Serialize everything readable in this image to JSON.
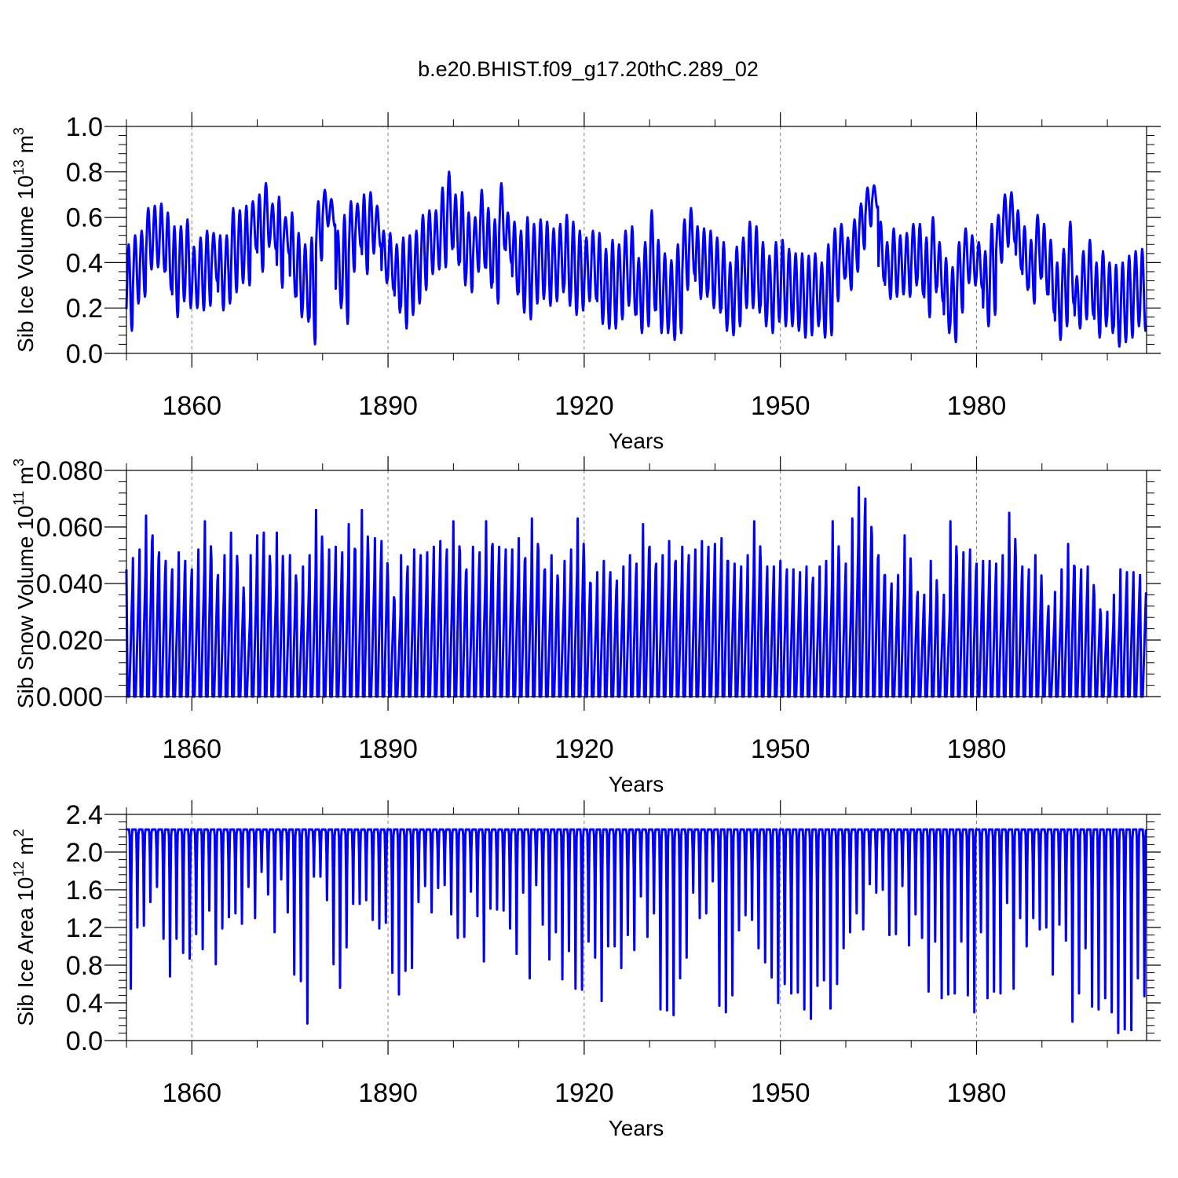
{
  "figure": {
    "title": "b.e20.BHIST.f09_g17.20thC.289_02"
  },
  "colors": {
    "series": "#0000ff",
    "axes": "#000000",
    "gridline": "#808080",
    "background": "#ffffff"
  },
  "chart_data": [
    {
      "type": "line",
      "title": "",
      "ylabel": {
        "main": "Sib Ice Volume 10",
        "sup": "13",
        "unit": " m",
        "unit_sup": "3"
      },
      "xlabel": "Years",
      "xlim": [
        1850,
        2006
      ],
      "ylim": [
        0.0,
        1.0
      ],
      "xticks": [
        1860,
        1890,
        1920,
        1950,
        1980
      ],
      "yticks": [
        "0.0",
        "0.2",
        "0.4",
        "0.6",
        "0.8",
        "1.0"
      ],
      "grid": "vertical dashed at major x ticks",
      "series": [
        {
          "kind": "seasonal",
          "start_year": 1850,
          "end_year": 2006,
          "annual_max": [
            0.48,
            0.52,
            0.54,
            0.64,
            0.65,
            0.66,
            0.62,
            0.56,
            0.56,
            0.59,
            0.47,
            0.51,
            0.54,
            0.53,
            0.52,
            0.52,
            0.64,
            0.63,
            0.65,
            0.67,
            0.7,
            0.75,
            0.66,
            0.69,
            0.6,
            0.62,
            0.53,
            0.48,
            0.51,
            0.67,
            0.72,
            0.68,
            0.54,
            0.61,
            0.67,
            0.66,
            0.7,
            0.71,
            0.65,
            0.54,
            0.53,
            0.48,
            0.51,
            0.52,
            0.54,
            0.61,
            0.63,
            0.63,
            0.73,
            0.8,
            0.7,
            0.71,
            0.62,
            0.6,
            0.72,
            0.64,
            0.59,
            0.75,
            0.62,
            0.58,
            0.54,
            0.6,
            0.57,
            0.59,
            0.58,
            0.55,
            0.57,
            0.61,
            0.58,
            0.54,
            0.51,
            0.54,
            0.53,
            0.46,
            0.5,
            0.48,
            0.54,
            0.56,
            0.42,
            0.49,
            0.63,
            0.5,
            0.44,
            0.41,
            0.48,
            0.59,
            0.64,
            0.56,
            0.55,
            0.54,
            0.51,
            0.49,
            0.4,
            0.47,
            0.51,
            0.58,
            0.56,
            0.49,
            0.43,
            0.49,
            0.5,
            0.46,
            0.44,
            0.44,
            0.43,
            0.44,
            0.4,
            0.48,
            0.55,
            0.57,
            0.51,
            0.59,
            0.66,
            0.73,
            0.74,
            0.58,
            0.49,
            0.55,
            0.52,
            0.53,
            0.57,
            0.57,
            0.51,
            0.6,
            0.49,
            0.42,
            0.38,
            0.49,
            0.55,
            0.52,
            0.49,
            0.45,
            0.57,
            0.61,
            0.7,
            0.71,
            0.63,
            0.56,
            0.5,
            0.61,
            0.57,
            0.5,
            0.4,
            0.46,
            0.58,
            0.34,
            0.45,
            0.5,
            0.4,
            0.45,
            0.4,
            0.39,
            0.4,
            0.43,
            0.45,
            0.46
          ],
          "annual_min": [
            0.1,
            0.22,
            0.25,
            0.37,
            0.38,
            0.36,
            0.28,
            0.16,
            0.23,
            0.2,
            0.2,
            0.19,
            0.21,
            0.32,
            0.19,
            0.22,
            0.27,
            0.31,
            0.3,
            0.46,
            0.36,
            0.47,
            0.46,
            0.29,
            0.44,
            0.25,
            0.16,
            0.14,
            0.04,
            0.41,
            0.56,
            0.56,
            0.2,
            0.13,
            0.36,
            0.47,
            0.35,
            0.44,
            0.47,
            0.31,
            0.28,
            0.18,
            0.11,
            0.17,
            0.22,
            0.28,
            0.35,
            0.37,
            0.38,
            0.46,
            0.39,
            0.3,
            0.27,
            0.36,
            0.38,
            0.29,
            0.22,
            0.46,
            0.4,
            0.26,
            0.18,
            0.15,
            0.22,
            0.24,
            0.21,
            0.23,
            0.27,
            0.21,
            0.17,
            0.19,
            0.23,
            0.24,
            0.13,
            0.11,
            0.11,
            0.15,
            0.21,
            0.17,
            0.09,
            0.12,
            0.19,
            0.09,
            0.09,
            0.06,
            0.09,
            0.28,
            0.35,
            0.24,
            0.25,
            0.2,
            0.18,
            0.1,
            0.08,
            0.12,
            0.2,
            0.2,
            0.18,
            0.12,
            0.09,
            0.14,
            0.12,
            0.12,
            0.1,
            0.07,
            0.08,
            0.12,
            0.07,
            0.08,
            0.23,
            0.33,
            0.28,
            0.36,
            0.46,
            0.56,
            0.64,
            0.32,
            0.24,
            0.25,
            0.26,
            0.25,
            0.3,
            0.26,
            0.16,
            0.27,
            0.23,
            0.09,
            0.05,
            0.18,
            0.31,
            0.3,
            0.29,
            0.12,
            0.17,
            0.4,
            0.47,
            0.49,
            0.37,
            0.28,
            0.22,
            0.33,
            0.26,
            0.18,
            0.06,
            0.12,
            0.22,
            0.11,
            0.15,
            0.17,
            0.07,
            0.12,
            0.09,
            0.03,
            0.05,
            0.07,
            0.12,
            0.1
          ]
        }
      ]
    },
    {
      "type": "line",
      "title": "",
      "ylabel": {
        "main": "Sib Snow Volume 10",
        "sup": "11",
        "unit": " m",
        "unit_sup": "3"
      },
      "xlabel": "Years",
      "xlim": [
        1850,
        2006
      ],
      "ylim": [
        0.0,
        0.08
      ],
      "xticks": [
        1860,
        1890,
        1920,
        1950,
        1980
      ],
      "yticks": [
        "0.000",
        "0.020",
        "0.040",
        "0.060",
        "0.080"
      ],
      "grid": "vertical dashed at major x ticks",
      "series": [
        {
          "kind": "seasonal",
          "start_year": 1850,
          "end_year": 2006,
          "annual_max": [
            0.045,
            0.049,
            0.052,
            0.064,
            0.057,
            0.051,
            0.048,
            0.045,
            0.051,
            0.048,
            0.045,
            0.052,
            0.062,
            0.048,
            0.043,
            0.05,
            0.058,
            0.045,
            0.033,
            0.05,
            0.057,
            0.058,
            0.046,
            0.058,
            0.042,
            0.05,
            0.04,
            0.046,
            0.05,
            0.066,
            0.048,
            0.052,
            0.053,
            0.051,
            0.061,
            0.052,
            0.066,
            0.049,
            0.056,
            0.055,
            0.041,
            0.034,
            0.05,
            0.046,
            0.052,
            0.05,
            0.051,
            0.053,
            0.055,
            0.052,
            0.062,
            0.051,
            0.045,
            0.053,
            0.051,
            0.062,
            0.054,
            0.053,
            0.052,
            0.052,
            0.056,
            0.049,
            0.063,
            0.052,
            0.045,
            0.05,
            0.041,
            0.048,
            0.052,
            0.063,
            0.047,
            0.04,
            0.044,
            0.048,
            0.044,
            0.041,
            0.046,
            0.05,
            0.047,
            0.061,
            0.053,
            0.047,
            0.05,
            0.055,
            0.048,
            0.053,
            0.05,
            0.052,
            0.055,
            0.053,
            0.054,
            0.056,
            0.048,
            0.047,
            0.046,
            0.05,
            0.062,
            0.047,
            0.046,
            0.046,
            0.048,
            0.045,
            0.045,
            0.044,
            0.046,
            0.042,
            0.046,
            0.048,
            0.062,
            0.047,
            0.047,
            0.063,
            0.074,
            0.07,
            0.057,
            0.05,
            0.043,
            0.04,
            0.043,
            0.057,
            0.041,
            0.037,
            0.036,
            0.048,
            0.035,
            0.036,
            0.062,
            0.049,
            0.051,
            0.052,
            0.047,
            0.048,
            0.048,
            0.047,
            0.05,
            0.065,
            0.049,
            0.046,
            0.045,
            0.05,
            0.034,
            0.032,
            0.037,
            0.045,
            0.054,
            0.046,
            0.045,
            0.046,
            0.036,
            0.029,
            0.03,
            0.036,
            0.045,
            0.044,
            0.044,
            0.043
          ]
        }
      ]
    },
    {
      "type": "line",
      "title": "",
      "ylabel": {
        "main": "Sib Ice Area 10",
        "sup": "12",
        "unit": " m",
        "unit_sup": "2"
      },
      "xlabel": "Years",
      "xlim": [
        1850,
        2006
      ],
      "ylim": [
        0.0,
        2.4
      ],
      "xticks": [
        1860,
        1890,
        1920,
        1950,
        1980
      ],
      "yticks": [
        "0.0",
        "0.4",
        "0.8",
        "1.2",
        "1.6",
        "2.0",
        "2.4"
      ],
      "grid": "vertical dashed at major x ticks",
      "series": [
        {
          "kind": "seasonal",
          "start_year": 1850,
          "end_year": 2006,
          "annual_max": 2.24,
          "annual_min": [
            0.55,
            1.2,
            1.22,
            1.47,
            1.63,
            1.08,
            0.68,
            1.08,
            0.93,
            0.87,
            1.13,
            0.97,
            1.38,
            0.81,
            1.19,
            1.31,
            1.35,
            1.24,
            1.63,
            1.3,
            1.79,
            1.55,
            1.15,
            1.71,
            1.36,
            0.7,
            0.63,
            0.18,
            1.74,
            1.74,
            1.49,
            0.81,
            0.56,
            0.99,
            1.45,
            1.45,
            1.49,
            1.28,
            1.19,
            1.25,
            0.72,
            0.49,
            0.74,
            0.77,
            1.47,
            1.64,
            1.36,
            1.62,
            1.65,
            1.34,
            1.09,
            1.1,
            1.58,
            1.32,
            0.84,
            1.4,
            1.39,
            1.38,
            1.19,
            0.92,
            1.57,
            0.66,
            1.65,
            1.23,
            0.86,
            1.15,
            0.65,
            0.95,
            0.55,
            0.54,
            1.05,
            0.88,
            0.42,
            1.0,
            1.0,
            0.77,
            1.12,
            0.96,
            1.53,
            1.1,
            1.35,
            0.33,
            0.32,
            0.27,
            0.66,
            0.88,
            1.57,
            1.3,
            1.35,
            1.69,
            0.37,
            0.3,
            0.48,
            1.17,
            1.33,
            1.28,
            0.98,
            0.83,
            0.67,
            0.4,
            0.6,
            0.5,
            0.51,
            0.33,
            0.23,
            0.58,
            0.64,
            0.34,
            0.6,
            0.98,
            1.15,
            1.35,
            1.18,
            1.66,
            1.57,
            1.6,
            1.12,
            1.13,
            1.64,
            1.01,
            1.34,
            1.09,
            0.52,
            1.05,
            0.45,
            0.49,
            0.5,
            1.05,
            0.48,
            0.3,
            1.15,
            0.45,
            0.52,
            0.5,
            1.46,
            0.55,
            1.3,
            1.0,
            1.3,
            1.18,
            1.2,
            0.7,
            1.23,
            1.06,
            0.2,
            0.5,
            0.98,
            0.36,
            0.33,
            0.45,
            0.3,
            0.08,
            0.12,
            0.11,
            0.66,
            0.47
          ]
        }
      ]
    }
  ]
}
